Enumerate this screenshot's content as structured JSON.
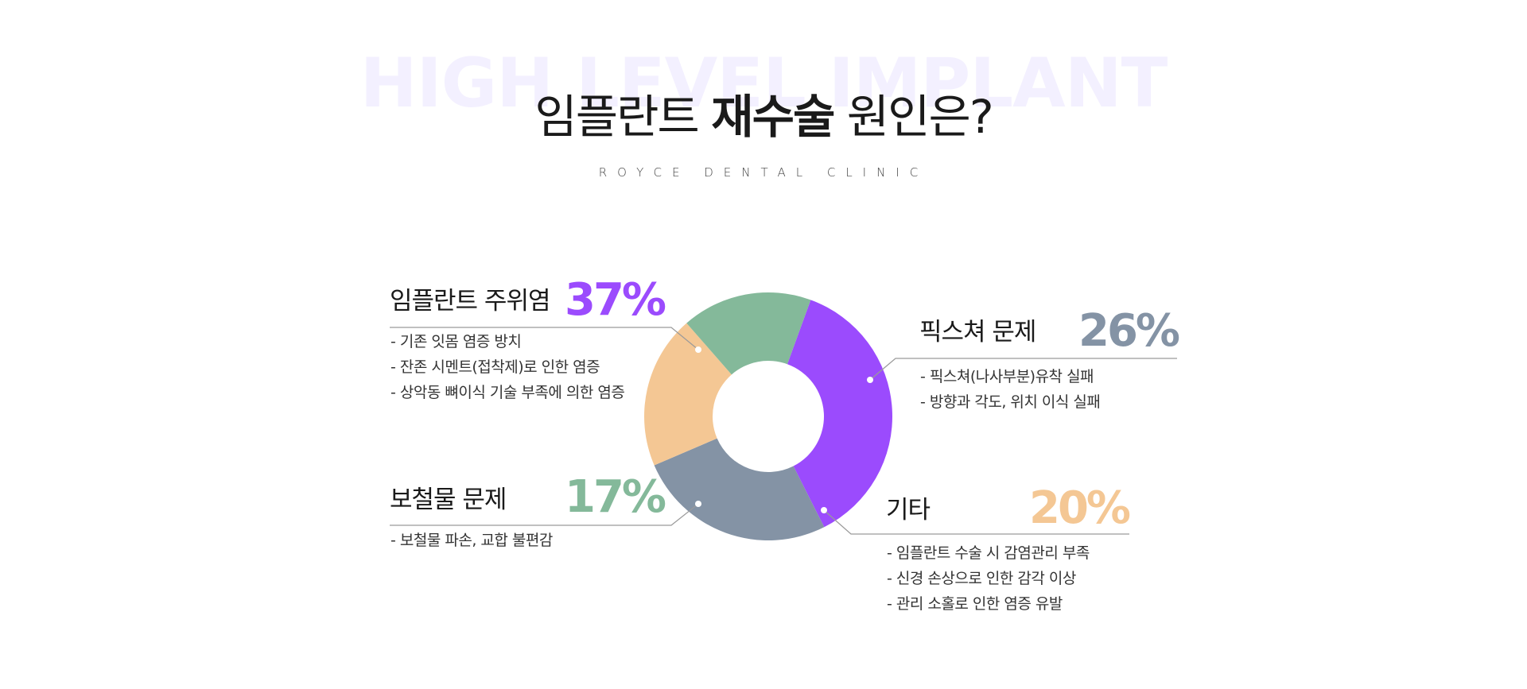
{
  "header": {
    "watermark": "HIGH LEVEL IMPLANT",
    "title_pre": "임플란트 ",
    "title_bold": "재수술",
    "title_post": " 원인은?",
    "subtitle": "ROYCE DENTAL CLINIC"
  },
  "chart_data": {
    "type": "pie",
    "donut": true,
    "legend": "none",
    "slices": [
      {
        "label": "임플란트 주위염",
        "value": 37,
        "value_label": "37%",
        "color": "#9b4bfd",
        "details": [
          "- 기존 잇몸 염증 방치",
          "- 잔존 시멘트(접착제)로 인한 염증",
          "- 상악동 뼈이식 기술 부족에 의한 염증"
        ]
      },
      {
        "label": "픽스쳐 문제",
        "value": 26,
        "value_label": "26%",
        "color": "#8493a5",
        "details": [
          "- 픽스쳐(나사부분)유착 실패",
          "- 방향과 각도, 위치 이식 실패"
        ]
      },
      {
        "label": "기타",
        "value": 20,
        "value_label": "20%",
        "color": "#f4c794",
        "details": [
          "- 임플란트 수술 시 감염관리 부족",
          "- 신경 손상으로 인한 감각 이상",
          "- 관리 소홀로 인한 염증 유발"
        ]
      },
      {
        "label": "보철물 문제",
        "value": 17,
        "value_label": "17%",
        "color": "#84b99a",
        "details": [
          "- 보철물 파손, 교합 불편감"
        ]
      }
    ]
  }
}
